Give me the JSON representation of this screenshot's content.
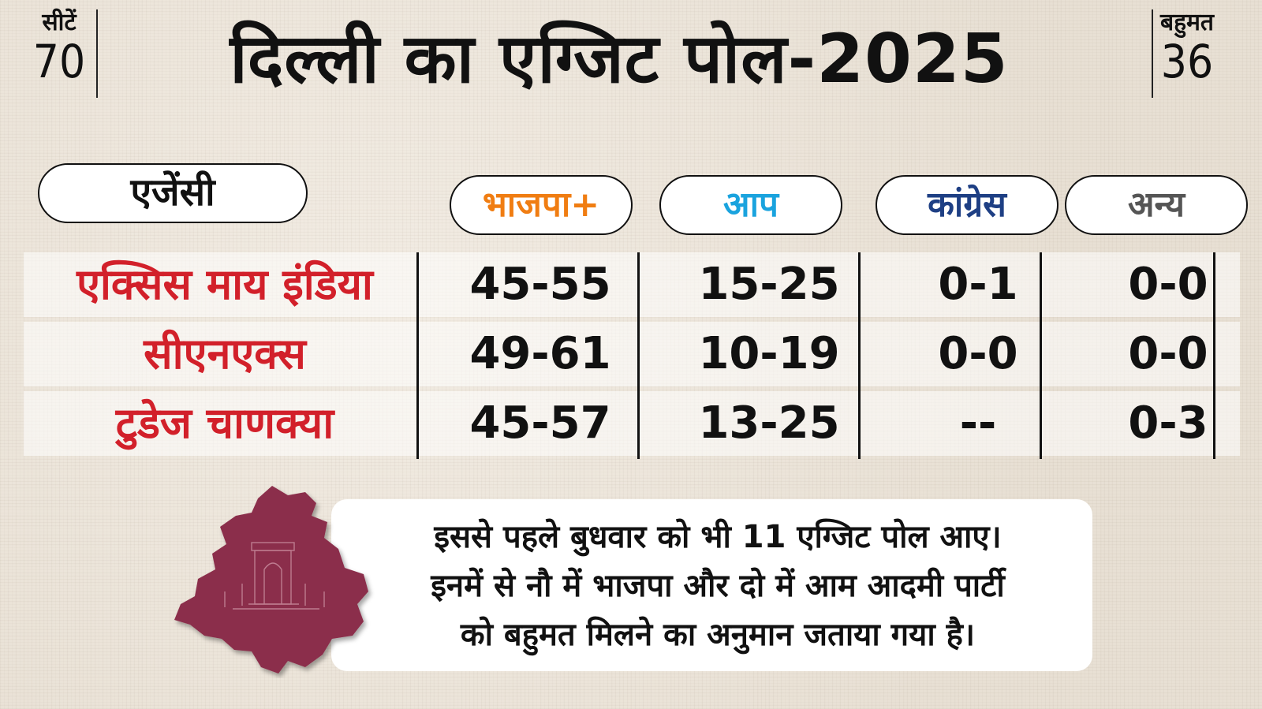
{
  "header": {
    "title": "दिल्ली का एग्जिट पोल-2025",
    "seats_label": "सीटें",
    "seats_value": "70",
    "majority_label": "बहुमत",
    "majority_value": "36"
  },
  "table": {
    "agency_header": "एजेंसी",
    "columns": [
      {
        "label": "भाजपा+",
        "color": "#f07d12"
      },
      {
        "label": "आप",
        "color": "#1aa3de"
      },
      {
        "label": "कांग्रेस",
        "color": "#1e3f84"
      },
      {
        "label": "अन्य",
        "color": "#555555"
      }
    ],
    "rows": [
      {
        "agency": "एक्सिस माय इंडिया",
        "values": [
          "45-55",
          "15-25",
          "0-1",
          "0-0"
        ]
      },
      {
        "agency": "सीएनएक्स",
        "values": [
          "49-61",
          "10-19",
          "0-0",
          "0-0"
        ]
      },
      {
        "agency": "टुडेज चाणक्या",
        "values": [
          "45-57",
          "13-25",
          "--",
          "0-3"
        ]
      }
    ]
  },
  "note": {
    "lines": [
      "इससे पहले बुधवार को भी 11 एग्जिट पोल आए।",
      "इनमें से नौ में भाजपा और दो में आम आदमी पार्टी",
      "को बहुमत मिलने का अनुमान जताया गया है।"
    ]
  },
  "colors": {
    "agency_text": "#d2202a",
    "map_fill": "#8b2f4b"
  }
}
